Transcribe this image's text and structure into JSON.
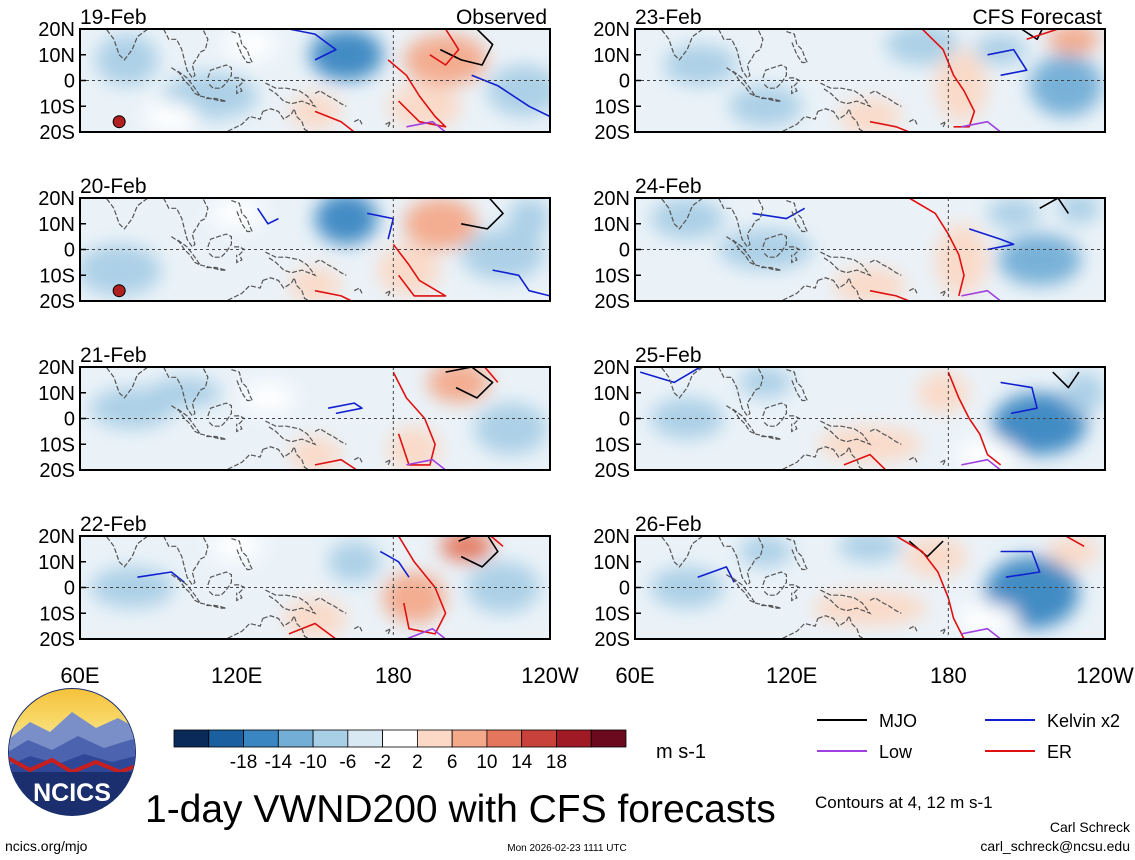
{
  "figure": {
    "title": "1-day VWND200 with CFS forecasts",
    "units": "m s-1",
    "contour_note": "Contours at 4, 12 m s-1",
    "logo_text": "NCICS",
    "footer_left": "ncics.org/mjo",
    "footer_center": "Mon 2026-02-23 1111 UTC",
    "author_name": "Carl Schreck",
    "author_email": "carl_schreck@ncsu.edu"
  },
  "chart_data": {
    "type": "heatmap",
    "variable": "200-hPa meridional wind anomaly (VWND200)",
    "units": "m s-1",
    "x_tick_labels": [
      "60E",
      "120E",
      "180",
      "120W"
    ],
    "y_tick_labels": [
      "20N",
      "10N",
      "0",
      "10S",
      "20S"
    ],
    "xlim": [
      60,
      240
    ],
    "ylim": [
      -20,
      20
    ],
    "columns": [
      {
        "label": "Observed",
        "days": [
          "19-Feb",
          "20-Feb",
          "21-Feb",
          "22-Feb"
        ]
      },
      {
        "label": "CFS Forecast",
        "days": [
          "23-Feb",
          "24-Feb",
          "25-Feb",
          "26-Feb"
        ]
      }
    ],
    "colorbar": {
      "labels": [
        "-18",
        "-14",
        "-10",
        "-6",
        "-2",
        "2",
        "6",
        "10",
        "14",
        "18"
      ],
      "colors": [
        "#0a2a5a",
        "#1a5fa0",
        "#3a86c2",
        "#73aed6",
        "#a9cfe6",
        "#d9e9f4",
        "#ffffff",
        "#fbd9c6",
        "#f3a98a",
        "#e4765d",
        "#c8413a",
        "#a01a25",
        "#6b0a1e"
      ]
    },
    "legend": [
      {
        "name": "MJO",
        "color": "#000000"
      },
      {
        "name": "Kelvin x2",
        "color": "#1020d0"
      },
      {
        "name": "Low",
        "color": "#a040e0"
      },
      {
        "name": "ER",
        "color": "#e01010"
      }
    ],
    "contour_levels": [
      4,
      12
    ]
  }
}
